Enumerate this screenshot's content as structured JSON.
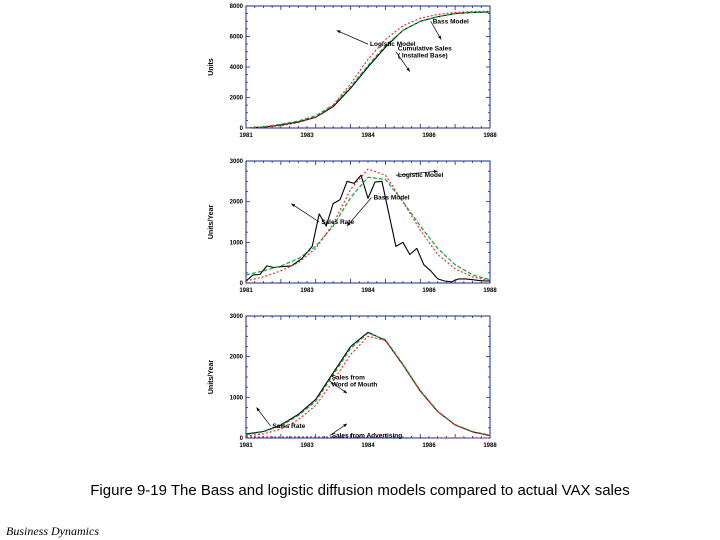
{
  "caption": "Figure 9-19 The Bass and logistic diffusion models compared to actual VAX sales",
  "footer": "Business Dynamics",
  "colors": {
    "actual": "#000000",
    "bass": "#1e9e3c",
    "logistic": "#e0262a",
    "advertising": "#b0306e",
    "frame": "#1a2a8a"
  },
  "chart_data": [
    {
      "type": "line",
      "xlim": [
        1981,
        1988
      ],
      "xticks": [
        "1981",
        "1983",
        "1984",
        "1986",
        "1988"
      ],
      "ylim": [
        0,
        8000
      ],
      "yticks": [
        "0",
        "2000",
        "4000",
        "6000",
        "8000"
      ],
      "ylabel": "Units",
      "series": [
        {
          "key": "actual",
          "x": [
            1981,
            1981.5,
            1982,
            1982.5,
            1983,
            1983.5,
            1984,
            1984.5,
            1985,
            1985.5,
            1986,
            1986.5,
            1987,
            1987.5,
            1988
          ],
          "values": [
            0,
            60,
            200,
            400,
            700,
            1400,
            2600,
            4000,
            5300,
            6400,
            7000,
            7300,
            7500,
            7580,
            7600
          ]
        },
        {
          "key": "bass",
          "x": [
            1981,
            1981.5,
            1982,
            1982.5,
            1983,
            1983.5,
            1984,
            1984.5,
            1985,
            1985.5,
            1986,
            1986.5,
            1987,
            1987.5,
            1988
          ],
          "values": [
            0,
            80,
            250,
            450,
            800,
            1500,
            2700,
            4100,
            5400,
            6400,
            7000,
            7300,
            7500,
            7580,
            7620
          ]
        },
        {
          "key": "logistic",
          "x": [
            1981,
            1981.5,
            1982,
            1982.5,
            1983,
            1983.5,
            1984,
            1984.5,
            1985,
            1985.5,
            1986,
            1986.5,
            1987,
            1987.5,
            1988
          ],
          "values": [
            0,
            50,
            150,
            350,
            700,
            1500,
            2900,
            4500,
            5800,
            6700,
            7200,
            7450,
            7580,
            7640,
            7660
          ]
        }
      ],
      "annotations": [
        {
          "lines": [
            "Logistic Model"
          ],
          "ax": 1983.6,
          "ay": 6400,
          "tx": 1984.5,
          "ty": 5500
        },
        {
          "lines": [
            "Bass Model"
          ],
          "ax": 1986.6,
          "ay": 5800,
          "tx": 1986.3,
          "ty": 7000
        },
        {
          "lines": [
            "Cumulative Sales",
            "( Installed Base)"
          ],
          "ax": 1985.7,
          "ay": 3700,
          "tx": 1985.3,
          "ty": 5000
        }
      ]
    },
    {
      "type": "line",
      "xlim": [
        1981,
        1988
      ],
      "xticks": [
        "1981",
        "1983",
        "1984",
        "1986",
        "1988"
      ],
      "ylim": [
        0,
        3000
      ],
      "yticks": [
        "0",
        "1000",
        "2000",
        "3000"
      ],
      "ylabel": "Units/Year",
      "series": [
        {
          "key": "actual",
          "x": [
            1981,
            1981.2,
            1981.4,
            1981.6,
            1981.8,
            1982,
            1982.3,
            1982.6,
            1982.9,
            1983.1,
            1983.3,
            1983.5,
            1983.7,
            1983.9,
            1984.1,
            1984.3,
            1984.5,
            1984.7,
            1984.9,
            1985.1,
            1985.3,
            1985.5,
            1985.7,
            1985.9,
            1986.1,
            1986.3,
            1986.5,
            1986.7,
            1986.9,
            1987.1,
            1987.3,
            1987.5,
            1987.7,
            1987.9,
            1988
          ],
          "values": [
            50,
            200,
            210,
            420,
            380,
            400,
            420,
            600,
            900,
            1700,
            1400,
            1950,
            2050,
            2500,
            2450,
            2650,
            2080,
            2480,
            2500,
            1700,
            900,
            1000,
            700,
            850,
            450,
            300,
            100,
            50,
            30,
            100,
            100,
            80,
            60,
            50,
            50
          ]
        },
        {
          "key": "bass",
          "x": [
            1981,
            1981.5,
            1982,
            1982.5,
            1983,
            1983.5,
            1984,
            1984.5,
            1985,
            1985.5,
            1986,
            1986.5,
            1987,
            1987.5,
            1988
          ],
          "values": [
            200,
            300,
            420,
            600,
            900,
            1400,
            2100,
            2600,
            2550,
            2000,
            1400,
            850,
            450,
            200,
            80
          ]
        },
        {
          "key": "logistic",
          "x": [
            1981,
            1981.5,
            1982,
            1982.5,
            1983,
            1983.5,
            1984,
            1984.5,
            1985,
            1985.5,
            1986,
            1986.5,
            1987,
            1987.5,
            1988
          ],
          "values": [
            50,
            150,
            300,
            500,
            850,
            1450,
            2300,
            2800,
            2650,
            2000,
            1300,
            700,
            350,
            150,
            60
          ]
        }
      ],
      "annotations": [
        {
          "lines": [
            "Logistic Model"
          ],
          "ax": 1986.5,
          "ay": 2750,
          "tx": 1985.3,
          "ty": 2650
        },
        {
          "lines": [
            "Sales Rate"
          ],
          "ax": 1982.3,
          "ay": 1950,
          "tx": 1983.1,
          "ty": 1500
        },
        {
          "lines": [
            "Bass Model"
          ],
          "ax": 1983.9,
          "ay": 1400,
          "tx": 1984.6,
          "ty": 2100
        }
      ]
    },
    {
      "type": "line",
      "xlim": [
        1981,
        1988
      ],
      "xticks": [
        "1981",
        "1983",
        "1984",
        "1986",
        "1988"
      ],
      "ylim": [
        0,
        3000
      ],
      "yticks": [
        "0",
        "1000",
        "2000",
        "3000"
      ],
      "ylabel": "Units/Year",
      "series": [
        {
          "key": "actual",
          "x": [
            1981,
            1981.5,
            1982,
            1982.5,
            1983,
            1983.5,
            1984,
            1984.5,
            1985,
            1985.5,
            1986,
            1986.5,
            1987,
            1987.5,
            1988
          ],
          "values": [
            100,
            160,
            320,
            580,
            950,
            1600,
            2250,
            2600,
            2400,
            1800,
            1150,
            650,
            320,
            150,
            60
          ]
        },
        {
          "key": "bass",
          "x": [
            1981,
            1981.5,
            1982,
            1982.5,
            1983,
            1983.5,
            1984,
            1984.5,
            1985,
            1985.5,
            1986,
            1986.5,
            1987,
            1987.5,
            1988
          ],
          "values": [
            80,
            150,
            300,
            550,
            900,
            1550,
            2200,
            2580,
            2420,
            1820,
            1170,
            660,
            330,
            160,
            70
          ]
        },
        {
          "key": "logistic",
          "x": [
            1981,
            1981.5,
            1982,
            1982.5,
            1983,
            1983.5,
            1984,
            1984.5,
            1985,
            1985.5,
            1986,
            1986.5,
            1987,
            1987.5,
            1988
          ],
          "values": [
            50,
            100,
            220,
            450,
            800,
            1400,
            2050,
            2500,
            2400,
            1800,
            1150,
            650,
            320,
            150,
            60
          ]
        },
        {
          "key": "advertising",
          "x": [
            1981,
            1982,
            1983,
            1984,
            1985,
            1986,
            1987,
            1988
          ],
          "values": [
            30,
            28,
            26,
            22,
            14,
            6,
            2,
            0
          ]
        }
      ],
      "annotations": [
        {
          "lines": [
            "Sales from",
            "Word of Mouth"
          ],
          "ax": 1983.9,
          "ay": 1100,
          "tx": 1983.4,
          "ty": 1400
        },
        {
          "lines": [
            "Sales Rate"
          ],
          "ax": 1981.3,
          "ay": 750,
          "tx": 1981.7,
          "ty": 300
        },
        {
          "lines": [
            "Sales from Advertising"
          ],
          "ax": 1983.9,
          "ay": 350,
          "tx": 1983.4,
          "ty": 60
        }
      ]
    }
  ]
}
